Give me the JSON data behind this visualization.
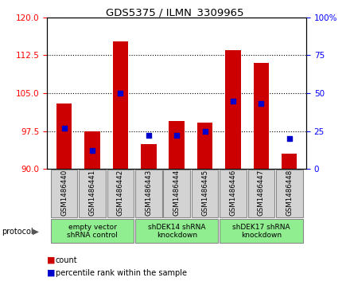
{
  "title": "GDS5375 / ILMN_3309965",
  "samples": [
    "GSM1486440",
    "GSM1486441",
    "GSM1486442",
    "GSM1486443",
    "GSM1486444",
    "GSM1486445",
    "GSM1486446",
    "GSM1486447",
    "GSM1486448"
  ],
  "counts": [
    103.0,
    97.5,
    115.2,
    95.0,
    99.5,
    99.2,
    113.5,
    111.0,
    93.0
  ],
  "percentiles": [
    27,
    12,
    50,
    22,
    22,
    25,
    45,
    43,
    20
  ],
  "ymin": 90,
  "ymax": 120,
  "yticks": [
    90,
    97.5,
    105,
    112.5,
    120
  ],
  "right_yticks": [
    0,
    25,
    50,
    75,
    100
  ],
  "bar_color": "#CC0000",
  "blue_color": "#0000CC",
  "bar_width": 0.55,
  "group_defs": [
    {
      "start": 0,
      "end": 2,
      "label": "empty vector\nshRNA control"
    },
    {
      "start": 3,
      "end": 5,
      "label": "shDEK14 shRNA\nknockdown"
    },
    {
      "start": 6,
      "end": 8,
      "label": "shDEK17 shRNA\nknockdown"
    }
  ],
  "legend_count_label": "count",
  "legend_pct_label": "percentile rank within the sample",
  "protocol_label": "protocol",
  "group_color": "#90EE90",
  "sample_box_color": "#d3d3d3",
  "right_ytick_labels": [
    "0",
    "25",
    "50",
    "75",
    "100%"
  ]
}
